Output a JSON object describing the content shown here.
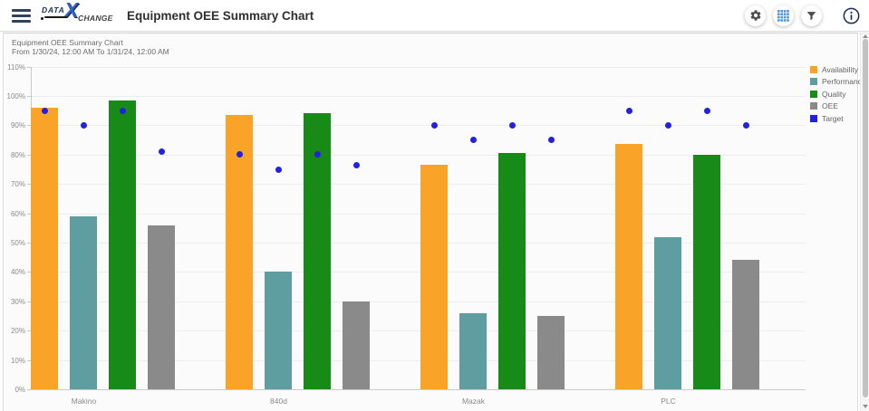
{
  "header": {
    "logo": {
      "top": "DATA",
      "x": "X",
      "bottom": "CHANGE"
    },
    "title": "Equipment OEE Summary Chart",
    "icons": [
      "menu",
      "settings",
      "grid-view",
      "filter",
      "info"
    ],
    "colors": {
      "icon_gray": "#4c4c4c",
      "grid_icon_blue": "#4f97d9",
      "info_navy": "#1d2e5e",
      "logo_blue": "#2f62c4",
      "hamburger_navy": "#33425b"
    }
  },
  "chart_data": {
    "type": "bar",
    "title": "Equipment OEE Summary Chart",
    "subtitle": "From 1/30/24, 12:00 AM To 1/31/24, 12:00 AM",
    "categories": [
      "Makino",
      "840d",
      "Mazak",
      "PLC"
    ],
    "series": [
      {
        "name": "Availability",
        "type": "bar",
        "color": "#F9A428",
        "values": [
          96,
          93.5,
          76.5,
          83.5
        ]
      },
      {
        "name": "Performance",
        "type": "bar",
        "color": "#5F9EA0",
        "values": [
          59,
          40,
          26,
          52
        ]
      },
      {
        "name": "Quality",
        "type": "bar",
        "color": "#188A18",
        "values": [
          98.5,
          94,
          80.5,
          80
        ]
      },
      {
        "name": "OEE",
        "type": "bar",
        "color": "#8A8A8A",
        "values": [
          56,
          30,
          25,
          44
        ]
      },
      {
        "name": "Target",
        "type": "point",
        "color": "#2121DE",
        "values_by_category": [
          [
            95,
            90,
            95,
            81
          ],
          [
            80,
            75,
            80,
            76.5
          ],
          [
            90,
            85,
            90,
            85
          ],
          [
            95,
            90,
            95,
            90
          ]
        ]
      }
    ],
    "y_axis": {
      "min": 0,
      "max": 110,
      "tick_labels": [
        "0%",
        "10%",
        "20%",
        "30%",
        "40%",
        "50%",
        "60%",
        "70%",
        "80%",
        "90%",
        "100%",
        "110%"
      ]
    },
    "grid": true,
    "legend_position": "top-right"
  }
}
